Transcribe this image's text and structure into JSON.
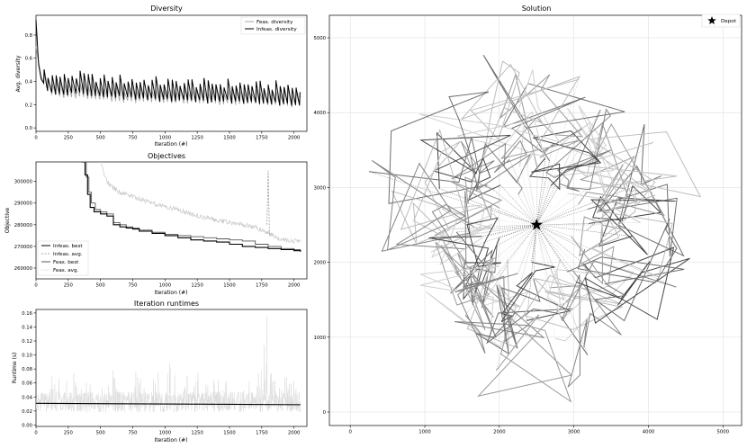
{
  "chart_data": [
    {
      "type": "line",
      "title": "Diversity",
      "xlabel": "Iteration (#)",
      "ylabel": "Avg. diversity",
      "xlim": [
        0,
        2100
      ],
      "ylim": [
        -0.03,
        0.97
      ],
      "xticks": [
        0,
        250,
        500,
        750,
        1000,
        1250,
        1500,
        1750,
        2000
      ],
      "yticks": [
        0.0,
        0.2,
        0.4,
        0.6,
        0.8
      ],
      "legend": "top-right",
      "series": [
        {
          "name": "Feas. diversity",
          "color": "#a6a6a6",
          "x": [
            0,
            40,
            80,
            120,
            160,
            200,
            250,
            300,
            350,
            400,
            450,
            500,
            600,
            700,
            800,
            900,
            1000,
            1100,
            1200,
            1300,
            1400,
            1500,
            1600,
            1700,
            1800,
            1900,
            2000,
            2050
          ],
          "y": [
            0.7,
            0.44,
            0.35,
            0.31,
            0.3,
            0.29,
            0.29,
            0.28,
            0.29,
            0.28,
            0.27,
            0.27,
            0.26,
            0.25,
            0.25,
            0.25,
            0.24,
            0.24,
            0.24,
            0.24,
            0.23,
            0.23,
            0.23,
            0.23,
            0.22,
            0.22,
            0.21,
            0.21
          ]
        },
        {
          "name": "Infeas. diversity",
          "color": "#000000",
          "x": [
            0,
            20,
            40,
            80,
            120,
            160,
            200,
            250,
            300,
            350,
            400,
            450,
            500,
            600,
            700,
            800,
            900,
            1000,
            1100,
            1200,
            1300,
            1400,
            1500,
            1600,
            1700,
            1800,
            1900,
            2000,
            2050
          ],
          "y": [
            0.93,
            0.55,
            0.42,
            0.35,
            0.33,
            0.32,
            0.32,
            0.32,
            0.33,
            0.33,
            0.32,
            0.31,
            0.3,
            0.3,
            0.29,
            0.28,
            0.28,
            0.27,
            0.27,
            0.27,
            0.26,
            0.26,
            0.26,
            0.25,
            0.25,
            0.24,
            0.24,
            0.23,
            0.22
          ]
        }
      ]
    },
    {
      "type": "line",
      "title": "Objectives",
      "xlabel": "Iteration (#)",
      "ylabel": "Objective",
      "xlim": [
        0,
        2100
      ],
      "ylim": [
        255000,
        309000
      ],
      "xticks": [
        0,
        250,
        500,
        750,
        1000,
        1250,
        1500,
        1750,
        2000
      ],
      "yticks": [
        260000,
        270000,
        280000,
        290000,
        300000
      ],
      "legend": "lower-left",
      "series": [
        {
          "name": "Infeas. best",
          "color": "#000000",
          "x": [
            350,
            380,
            400,
            420,
            450,
            500,
            550,
            600,
            650,
            700,
            750,
            800,
            900,
            1000,
            1100,
            1200,
            1300,
            1400,
            1500,
            1600,
            1700,
            1800,
            1900,
            2000,
            2050
          ],
          "y": [
            309000,
            303000,
            294000,
            288000,
            286000,
            285000,
            284000,
            280000,
            279000,
            278500,
            278000,
            277000,
            276000,
            275000,
            274000,
            273000,
            272500,
            272000,
            271000,
            270000,
            269500,
            269000,
            268500,
            268000,
            267500
          ]
        },
        {
          "name": "Infeas. avg.",
          "color": "#8c8c8c",
          "x": [
            1790,
            1800,
            1810
          ],
          "y": [
            280000,
            305000,
            275000
          ]
        },
        {
          "name": "Feas. best",
          "color": "#595959",
          "x": [
            360,
            390,
            410,
            430,
            460,
            500,
            550,
            600,
            650,
            700,
            750,
            800,
            900,
            1000,
            1100,
            1200,
            1300,
            1400,
            1500,
            1600,
            1700,
            1800,
            1900,
            2000,
            2050
          ],
          "y": [
            309000,
            302000,
            295000,
            290000,
            287000,
            286000,
            285000,
            281000,
            280000,
            279000,
            278500,
            277500,
            276500,
            275500,
            275000,
            274500,
            274000,
            273500,
            273000,
            272500,
            271000,
            270000,
            269000,
            268500,
            268000
          ]
        },
        {
          "name": "Feas. avg.",
          "color": "#c8c8c8",
          "x": [
            500,
            550,
            600,
            650,
            700,
            750,
            800,
            900,
            1000,
            1100,
            1200,
            1300,
            1400,
            1500,
            1600,
            1700,
            1800,
            1900,
            2000,
            2050
          ],
          "y": [
            309000,
            300000,
            297000,
            295000,
            294000,
            293000,
            292000,
            290000,
            288500,
            287000,
            285000,
            283500,
            282000,
            281000,
            280000,
            279000,
            276000,
            273500,
            272500,
            272000
          ]
        }
      ]
    },
    {
      "type": "line",
      "title": "Iteration runtimes",
      "xlabel": "Iteration (#)",
      "ylabel": "Runtime (s)",
      "xlim": [
        0,
        2100
      ],
      "ylim": [
        -0.002,
        0.165
      ],
      "xticks": [
        0,
        250,
        500,
        750,
        1000,
        1250,
        1500,
        1750,
        2000
      ],
      "yticks": [
        0.0,
        0.02,
        0.04,
        0.06,
        0.08,
        0.1,
        0.12,
        0.14,
        0.16
      ],
      "series": [
        {
          "color": "#dcdcdc",
          "x": [
            0,
            50,
            100,
            150,
            200,
            250,
            300,
            350,
            400,
            450,
            500,
            550,
            600,
            650,
            700,
            750,
            800,
            850,
            900,
            950,
            1000,
            1050,
            1100,
            1150,
            1200,
            1250,
            1300,
            1350,
            1400,
            1450,
            1500,
            1550,
            1600,
            1650,
            1700,
            1750,
            1790,
            1800,
            1850,
            1900,
            1950,
            2000,
            2050
          ],
          "y": [
            0.03,
            0.085,
            0.06,
            0.09,
            0.055,
            0.07,
            0.08,
            0.065,
            0.09,
            0.05,
            0.095,
            0.06,
            0.085,
            0.05,
            0.075,
            0.065,
            0.09,
            0.055,
            0.07,
            0.085,
            0.06,
            0.11,
            0.05,
            0.075,
            0.065,
            0.08,
            0.055,
            0.07,
            0.06,
            0.085,
            0.05,
            0.07,
            0.06,
            0.08,
            0.065,
            0.09,
            0.155,
            0.08,
            0.07,
            0.06,
            0.075,
            0.065,
            0.05
          ]
        },
        {
          "color": "#000000",
          "x": [
            0,
            2050
          ],
          "y": [
            0.031,
            0.029
          ]
        }
      ]
    },
    {
      "type": "scatter",
      "title": "Solution",
      "xlim": [
        -280,
        5250
      ],
      "ylim": [
        -180,
        5300
      ],
      "xticks": [
        0,
        1000,
        2000,
        3000,
        4000,
        5000
      ],
      "yticks": [
        0,
        1000,
        2000,
        3000,
        4000,
        5000
      ],
      "legend": "top-right",
      "depot": {
        "name": "Depot",
        "x": 2500,
        "y": 2500
      }
    }
  ]
}
